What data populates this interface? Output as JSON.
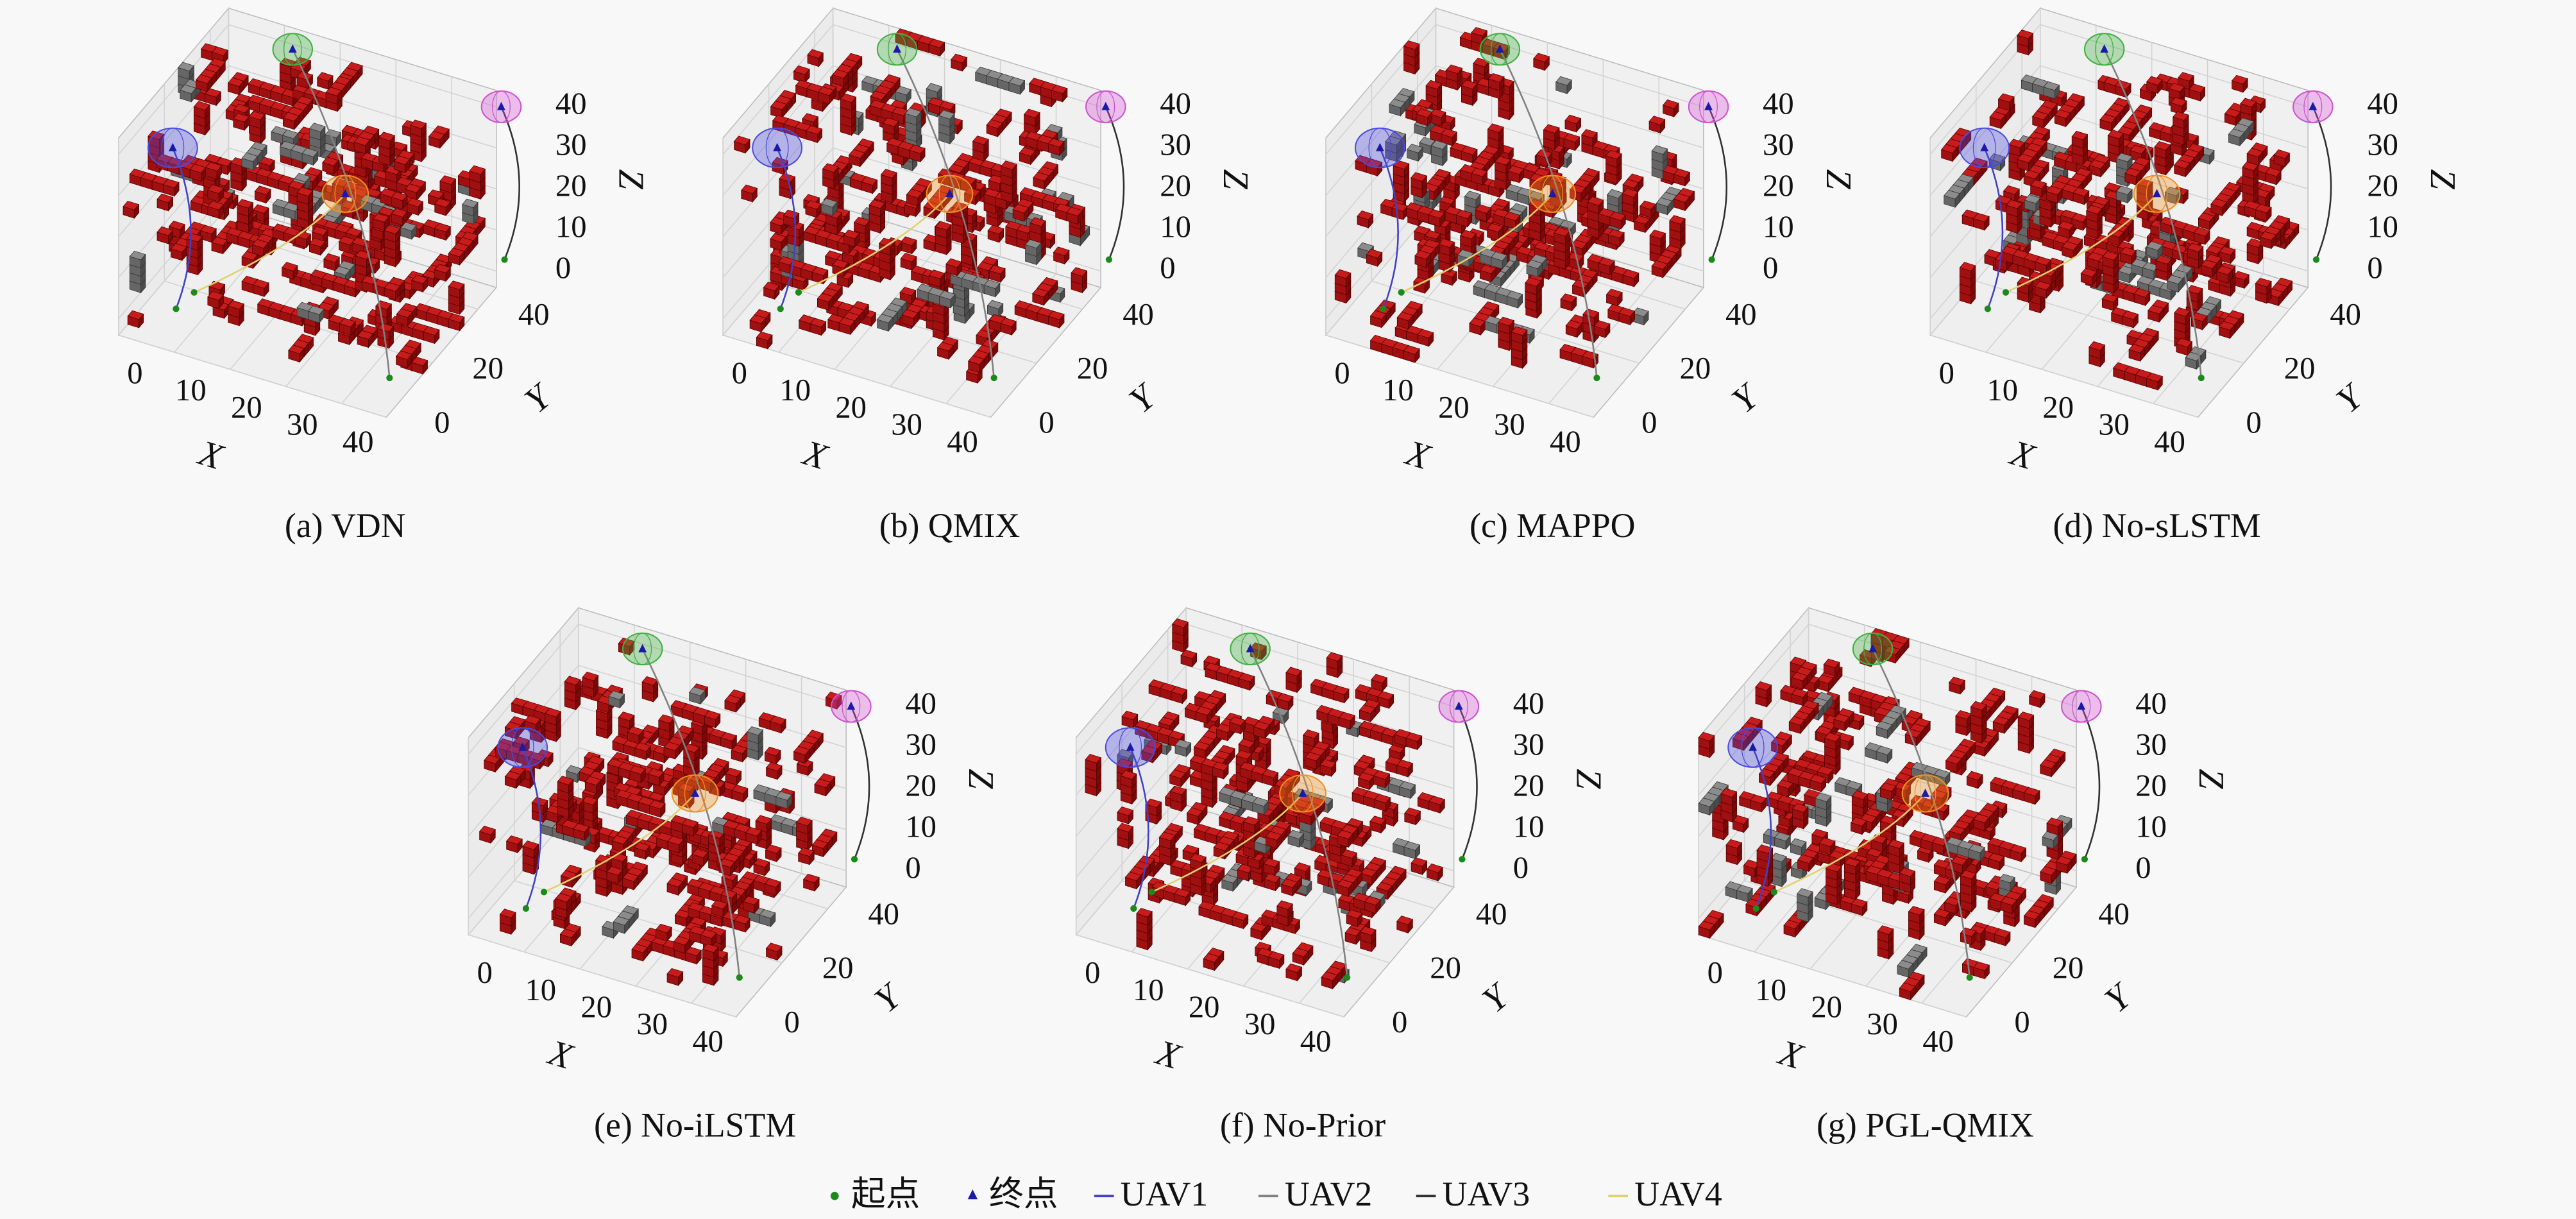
{
  "chart_data": [
    {
      "type": "voxel3d",
      "title": "(a) VDN",
      "xlabel": "X",
      "ylabel": "Y",
      "zlabel": "Z",
      "xlim": [
        0,
        48
      ],
      "ylim": [
        0,
        48
      ],
      "zlim": [
        -4,
        44
      ],
      "xticks": [
        0,
        10,
        20,
        30,
        40
      ],
      "yticks": [
        0,
        20,
        40
      ],
      "zticks": [
        0,
        10,
        20,
        30,
        40
      ]
    },
    {
      "type": "voxel3d",
      "title": "(b) QMIX",
      "xlabel": "X",
      "ylabel": "Y",
      "zlabel": "Z",
      "xlim": [
        0,
        48
      ],
      "ylim": [
        0,
        48
      ],
      "zlim": [
        -4,
        44
      ],
      "xticks": [
        0,
        10,
        20,
        30,
        40
      ],
      "yticks": [
        0,
        20,
        40
      ],
      "zticks": [
        0,
        10,
        20,
        30,
        40
      ]
    },
    {
      "type": "voxel3d",
      "title": "(c) MAPPO",
      "xlabel": "X",
      "ylabel": "Y",
      "zlabel": "Z",
      "xlim": [
        0,
        48
      ],
      "ylim": [
        0,
        48
      ],
      "zlim": [
        -4,
        44
      ],
      "xticks": [
        0,
        10,
        20,
        30,
        40
      ],
      "yticks": [
        0,
        20,
        40
      ],
      "zticks": [
        0,
        10,
        20,
        30,
        40
      ]
    },
    {
      "type": "voxel3d",
      "title": "(d) No-sLSTM",
      "xlabel": "X",
      "ylabel": "Y",
      "zlabel": "Z",
      "xlim": [
        0,
        48
      ],
      "ylim": [
        0,
        48
      ],
      "zlim": [
        -4,
        44
      ],
      "xticks": [
        0,
        10,
        20,
        30,
        40
      ],
      "yticks": [
        0,
        20,
        40
      ],
      "zticks": [
        0,
        10,
        20,
        30,
        40
      ]
    },
    {
      "type": "voxel3d",
      "title": "(e) No-iLSTM",
      "xlabel": "X",
      "ylabel": "Y",
      "zlabel": "Z",
      "xlim": [
        0,
        48
      ],
      "ylim": [
        0,
        48
      ],
      "zlim": [
        -4,
        44
      ],
      "xticks": [
        0,
        10,
        20,
        30,
        40
      ],
      "yticks": [
        0,
        20,
        40
      ],
      "zticks": [
        0,
        10,
        20,
        30,
        40
      ]
    },
    {
      "type": "voxel3d",
      "title": "(f) No-Prior",
      "xlabel": "X",
      "ylabel": "Y",
      "zlabel": "Z",
      "xlim": [
        0,
        48
      ],
      "ylim": [
        0,
        48
      ],
      "zlim": [
        -4,
        44
      ],
      "xticks": [
        0,
        10,
        20,
        30,
        40
      ],
      "yticks": [
        0,
        20,
        40
      ],
      "zticks": [
        0,
        10,
        20,
        30,
        40
      ]
    },
    {
      "type": "voxel3d",
      "title": "(g) PGL-QMIX",
      "xlabel": "X",
      "ylabel": "Y",
      "zlabel": "Z",
      "xlim": [
        0,
        48
      ],
      "ylim": [
        0,
        48
      ],
      "zlim": [
        -4,
        44
      ],
      "xticks": [
        0,
        10,
        20,
        30,
        40
      ],
      "yticks": [
        0,
        20,
        40
      ],
      "zticks": [
        0,
        10,
        20,
        30,
        40
      ]
    }
  ],
  "legend": {
    "entries": [
      {
        "name": "起点",
        "color": "#1b8a1b",
        "marker": "dot"
      },
      {
        "name": "终点",
        "color": "#1a1aa8",
        "marker": "triangle"
      },
      {
        "name": "UAV1",
        "color": "#4040c8",
        "marker": "line"
      },
      {
        "name": "UAV2",
        "color": "#808080",
        "marker": "line"
      },
      {
        "name": "UAV3",
        "color": "#303030",
        "marker": "line"
      },
      {
        "name": "UAV4",
        "color": "#e0d070",
        "marker": "line"
      }
    ]
  }
}
